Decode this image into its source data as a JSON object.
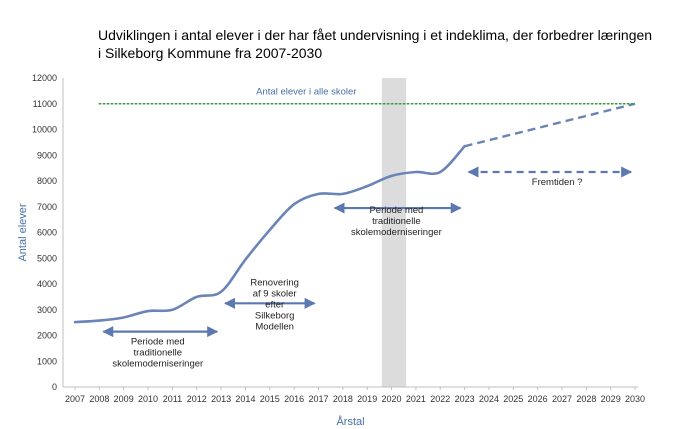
{
  "chart_data": {
    "type": "line",
    "title": "Udviklingen i antal elever i der har fået undervisning i et indeklima, der forbedrer læringen i Silkeborg Kommune fra 2007-2030",
    "xlabel": "Årstal",
    "ylabel": "Antal elever",
    "xlim": [
      2007,
      2030
    ],
    "ylim": [
      0,
      12000
    ],
    "yticks": [
      0,
      1000,
      2000,
      3000,
      4000,
      5000,
      6000,
      7000,
      8000,
      9000,
      10000,
      11000,
      12000
    ],
    "grid": false,
    "series": [
      {
        "style": "solid",
        "color": "#6b84b8",
        "x": [
          2007,
          2008,
          2009,
          2010,
          2011,
          2012,
          2013,
          2014,
          2015,
          2016,
          2017,
          2018,
          2019,
          2020,
          2021,
          2022,
          2023
        ],
        "values": [
          2520,
          2580,
          2700,
          2950,
          3000,
          3500,
          3700,
          4950,
          6100,
          7100,
          7500,
          7500,
          7800,
          8200,
          8350,
          8350,
          9350
        ]
      },
      {
        "style": "dashed",
        "color": "#6b84b8",
        "x": [
          2023,
          2030
        ],
        "values": [
          9350,
          11000
        ]
      },
      {
        "style": "dotted",
        "color": "#3a9a3a",
        "x": [
          2008,
          2030
        ],
        "values": [
          11000,
          11000
        ]
      }
    ],
    "shaded_band": {
      "x": [
        2019.6,
        2020.6
      ],
      "color": "#dcdcdc"
    },
    "annotations": [
      {
        "lines": [
          "Antal elever i alle skoler"
        ],
        "x": 2016.5,
        "y": 11350,
        "kind": "ref"
      },
      {
        "lines": [
          "Periode med",
          "traditionelle",
          "skolemoderniseringer"
        ],
        "x": 2010.4,
        "y": 1650,
        "arrow": [
          2008,
          2013,
          2150
        ],
        "arrow_style": "solid"
      },
      {
        "lines": [
          "Renovering",
          "af 9 skoler",
          "efter",
          "Silkeborg",
          "Modellen"
        ],
        "x": 2015.2,
        "y": 3950,
        "arrow": [
          2013,
          2017,
          3250
        ],
        "arrow_style": "solid"
      },
      {
        "lines": [
          "Periode med",
          "traditionelle",
          "skolemoderniseringer"
        ],
        "x": 2020.2,
        "y": 6750,
        "arrow": [
          2017.5,
          2023,
          6950
        ],
        "arrow_style": "solid"
      },
      {
        "lines": [
          "Fremtiden ?"
        ],
        "x": 2026.8,
        "y": 7850,
        "arrow": [
          2023,
          2030,
          8350
        ],
        "arrow_style": "dashed"
      }
    ]
  }
}
